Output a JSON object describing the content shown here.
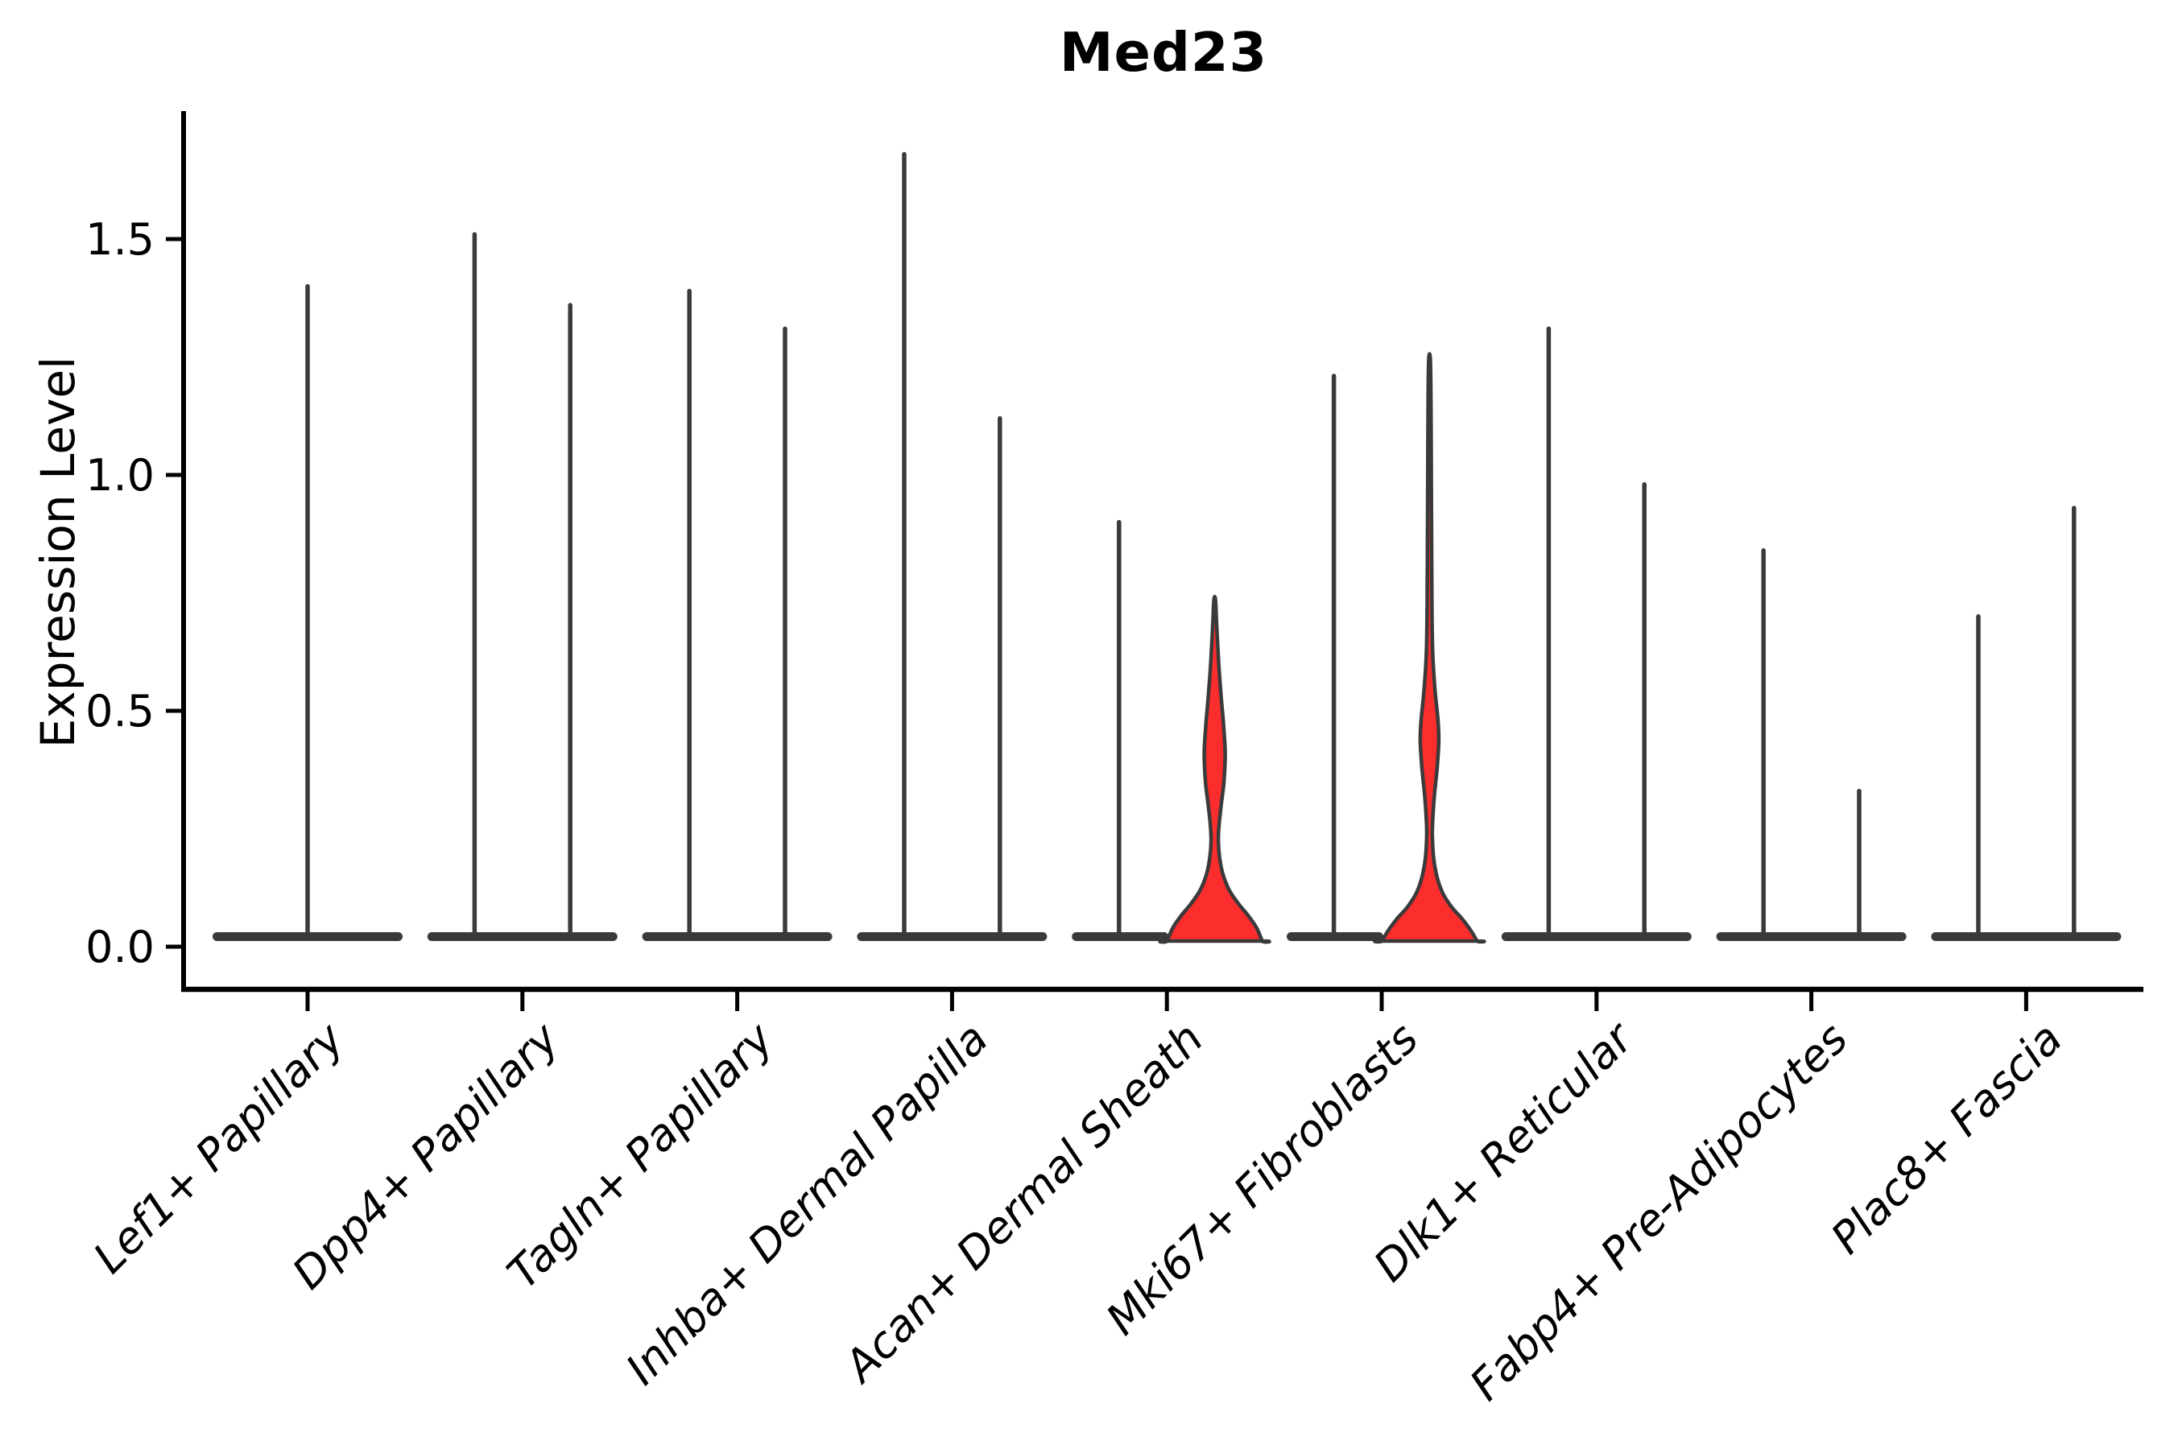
{
  "title": "Med23",
  "y_axis": {
    "label": "Expression Level",
    "ticks": [
      {
        "label": "0.0",
        "value": 0.0
      },
      {
        "label": "0.5",
        "value": 0.5
      },
      {
        "label": "1.0",
        "value": 1.0
      },
      {
        "label": "1.5",
        "value": 1.5
      }
    ]
  },
  "colors": {
    "highlight_fill": "#fb2d2d",
    "violin_stroke": "#3a3a3a",
    "axis": "#000000",
    "text": "#000000",
    "background": "#ffffff"
  },
  "chart_data": {
    "type": "violin",
    "title": "Med23",
    "xlabel": "",
    "ylabel": "Expression Level",
    "ylim": [
      -0.05,
      1.77
    ],
    "grid": false,
    "legend": "none",
    "categories": [
      "Lef1+ Papillary",
      "Dpp4+ Papillary",
      "Tagln+ Papillary",
      "Inhba+ Dermal Papilla",
      "Acan+ Dermal Sheath",
      "Mki67+ Fibroblasts",
      "Dlk1+ Reticular",
      "Fabp4+ Pre-Adipocytes",
      "Plac8+ Fascia"
    ],
    "groups": [
      {
        "category": "Lef1+ Papillary",
        "violins": [
          {
            "pos": 0,
            "color": "dark",
            "max": 1.4
          }
        ]
      },
      {
        "category": "Dpp4+ Papillary",
        "violins": [
          {
            "pos": -1,
            "color": "dark",
            "max": 1.51
          },
          {
            "pos": 1,
            "color": "dark",
            "max": 1.36
          }
        ]
      },
      {
        "category": "Tagln+ Papillary",
        "violins": [
          {
            "pos": -1,
            "color": "dark",
            "max": 1.39
          },
          {
            "pos": 1,
            "color": "dark",
            "max": 1.31
          }
        ]
      },
      {
        "category": "Inhba+ Dermal Papilla",
        "violins": [
          {
            "pos": -1,
            "color": "dark",
            "max": 1.68
          },
          {
            "pos": 1,
            "color": "dark",
            "max": 1.12
          }
        ]
      },
      {
        "category": "Acan+ Dermal Sheath",
        "violins": [
          {
            "pos": -1,
            "color": "dark",
            "max": 0.9
          },
          {
            "pos": 1,
            "color": "red",
            "max": 0.74,
            "profile": [
              [
                0.735,
                1
              ],
              [
                0.68,
                2.5
              ],
              [
                0.6,
                5
              ],
              [
                0.53,
                8
              ],
              [
                0.47,
                11
              ],
              [
                0.41,
                13
              ],
              [
                0.35,
                11.5
              ],
              [
                0.3,
                8
              ],
              [
                0.26,
                5.5
              ],
              [
                0.225,
                4.5
              ],
              [
                0.19,
                6
              ],
              [
                0.155,
                10
              ],
              [
                0.12,
                18
              ],
              [
                0.09,
                30
              ],
              [
                0.065,
                42
              ],
              [
                0.04,
                52
              ],
              [
                0.012,
                59
              ]
            ]
          }
        ]
      },
      {
        "category": "Mki67+ Fibroblasts",
        "violins": [
          {
            "pos": -1,
            "color": "dark",
            "max": 1.21
          },
          {
            "pos": 1,
            "color": "red",
            "max": 1.24,
            "profile": [
              [
                1.245,
                1
              ],
              [
                1.15,
                1.8
              ],
              [
                1.0,
                2.2
              ],
              [
                0.85,
                2.6
              ],
              [
                0.72,
                3
              ],
              [
                0.62,
                4
              ],
              [
                0.54,
                7
              ],
              [
                0.48,
                10.5
              ],
              [
                0.435,
                11.5
              ],
              [
                0.38,
                9.5
              ],
              [
                0.32,
                6
              ],
              [
                0.27,
                4
              ],
              [
                0.235,
                3.5
              ],
              [
                0.19,
                5
              ],
              [
                0.15,
                9
              ],
              [
                0.115,
                16
              ],
              [
                0.085,
                27
              ],
              [
                0.06,
                40
              ],
              [
                0.035,
                51
              ],
              [
                0.012,
                59
              ]
            ]
          }
        ]
      },
      {
        "category": "Dlk1+ Reticular",
        "violins": [
          {
            "pos": -1,
            "color": "dark",
            "max": 1.31
          },
          {
            "pos": 1,
            "color": "dark",
            "max": 0.98
          }
        ]
      },
      {
        "category": "Fabp4+ Pre-Adipocytes",
        "violins": [
          {
            "pos": -1,
            "color": "dark",
            "max": 0.84
          },
          {
            "pos": 1,
            "color": "dark",
            "max": 0.33
          }
        ]
      },
      {
        "category": "Plac8+ Fascia",
        "violins": [
          {
            "pos": -1,
            "color": "dark",
            "max": 0.7
          },
          {
            "pos": 1,
            "color": "dark",
            "max": 0.93
          }
        ]
      }
    ]
  }
}
